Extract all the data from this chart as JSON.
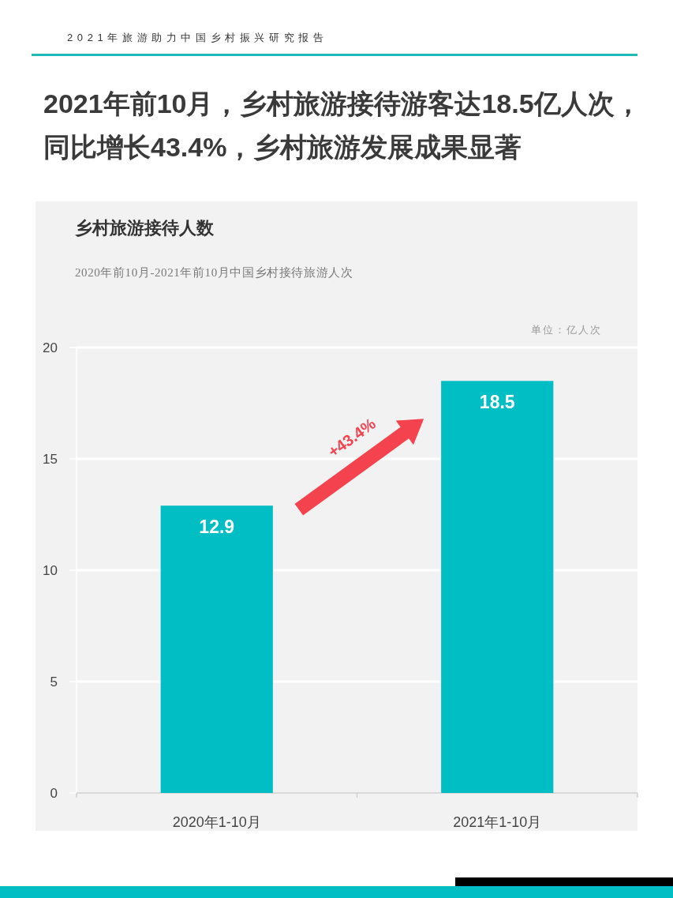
{
  "chart_data": {
    "type": "bar",
    "title": "乡村旅游接待人数",
    "subtitle": "2020年前10月-2021年前10月中国乡村接待旅游人次",
    "categories": [
      "2020年1-10月",
      "2021年1-10月"
    ],
    "values": [
      12.9,
      18.5
    ],
    "color": "#00bec4",
    "ylim": [
      0,
      20
    ],
    "yticks": [
      0,
      5,
      10,
      15,
      20
    ],
    "grid": "y",
    "data_labels": true,
    "annotations": [
      "2021年旅游助力中国乡村振兴研究报告",
      "2021年前10月，乡村旅游接待游客达18.5亿人次，同比增长43.4%，乡村旅游发展成果显著",
      "单位：亿人次",
      "+43.4%"
    ]
  }
}
